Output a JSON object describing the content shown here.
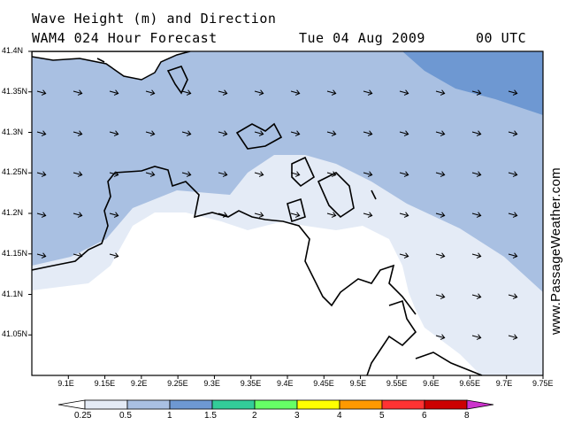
{
  "header": {
    "title_line1": "Wave Height (m) and Direction",
    "model": "WAM4 024 Hour Forecast",
    "date": "Tue 04 Aug 2009",
    "time": "00 UTC"
  },
  "watermark": "www.PassageWeather.com",
  "axes": {
    "lat_labels": [
      "41.4N",
      "41.35N",
      "41.3N",
      "41.25N",
      "41.2N",
      "41.15N",
      "41.1N",
      "41.05N"
    ],
    "lat_values": [
      41.4,
      41.35,
      41.3,
      41.25,
      41.2,
      41.15,
      41.1,
      41.05
    ],
    "lon_labels": [
      "9.1E",
      "9.15E",
      "9.2E",
      "9.25E",
      "9.3E",
      "9.35E",
      "9.4E",
      "9.45E",
      "9.5E",
      "9.55E",
      "9.6E",
      "9.65E",
      "9.7E",
      "9.75E"
    ],
    "lon_values": [
      9.1,
      9.15,
      9.2,
      9.25,
      9.3,
      9.35,
      9.4,
      9.45,
      9.5,
      9.55,
      9.6,
      9.65,
      9.7,
      9.75
    ],
    "lat_range": [
      41.0,
      41.4
    ],
    "lon_range": [
      9.05,
      9.75
    ]
  },
  "legend": {
    "labels": [
      "0.25",
      "0.5",
      "1",
      "1.5",
      "2",
      "3",
      "4",
      "5",
      "6",
      "8"
    ],
    "colors": [
      "#ffffff",
      "#e4ebf6",
      "#a9c0e2",
      "#6e98d2",
      "#33cc99",
      "#66ff66",
      "#ffff00",
      "#ff9900",
      "#ff3333",
      "#cc0000",
      "#cc33cc"
    ]
  },
  "map": {
    "colors": {
      "land": "#ffffff",
      "zone_light": "#e4ebf6",
      "zone_mid": "#a9c0e2",
      "zone_dark": "#6e98d2",
      "coast": "#000000",
      "arrow": "#000000"
    },
    "arrow_direction": "east-southeast"
  }
}
